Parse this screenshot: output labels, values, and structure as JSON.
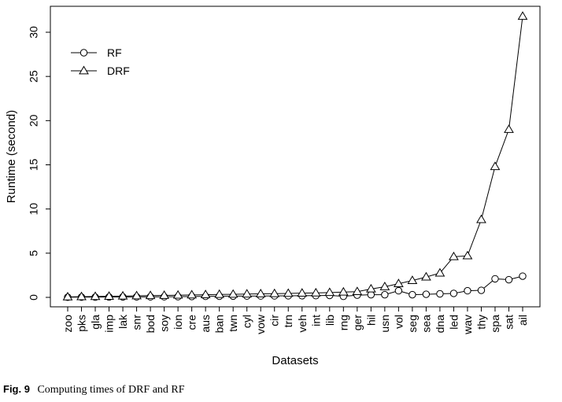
{
  "caption": {
    "label": "Fig. 9",
    "text": "Computing times of DRF and RF"
  },
  "chart_data": {
    "type": "line",
    "xlabel": "Datasets",
    "ylabel": "Runtime (second)",
    "ylim": [
      0,
      32
    ],
    "yticks": [
      "0",
      "5",
      "10",
      "15",
      "20",
      "25",
      "30"
    ],
    "legend_position": "top-left",
    "grid": false,
    "categories": [
      "zoo",
      "pks",
      "gla",
      "imp",
      "lak",
      "snr",
      "bod",
      "soy",
      "ion",
      "cre",
      "aus",
      "ban",
      "twn",
      "cyl",
      "vow",
      "cir",
      "trn",
      "veh",
      "int",
      "lib",
      "rng",
      "ger",
      "hil",
      "usn",
      "vol",
      "seg",
      "sea",
      "dna",
      "led",
      "wav",
      "thy",
      "spa",
      "sat",
      "ail"
    ],
    "series": [
      {
        "name": "RF",
        "marker": "circle",
        "values": [
          0.02,
          0.03,
          0.03,
          0.04,
          0.05,
          0.06,
          0.06,
          0.07,
          0.08,
          0.1,
          0.12,
          0.13,
          0.14,
          0.15,
          0.16,
          0.17,
          0.18,
          0.19,
          0.2,
          0.22,
          0.12,
          0.25,
          0.3,
          0.3,
          0.75,
          0.3,
          0.35,
          0.4,
          0.45,
          0.75,
          0.8,
          2.1,
          2.0,
          2.4
        ]
      },
      {
        "name": "DRF",
        "marker": "triangle",
        "values": [
          0.05,
          0.08,
          0.1,
          0.12,
          0.15,
          0.18,
          0.2,
          0.22,
          0.25,
          0.28,
          0.3,
          0.33,
          0.35,
          0.38,
          0.4,
          0.42,
          0.45,
          0.48,
          0.5,
          0.55,
          0.6,
          0.65,
          0.95,
          1.2,
          1.55,
          1.9,
          2.3,
          2.75,
          4.6,
          4.7,
          8.8,
          14.8,
          19.0,
          31.8
        ]
      }
    ]
  }
}
